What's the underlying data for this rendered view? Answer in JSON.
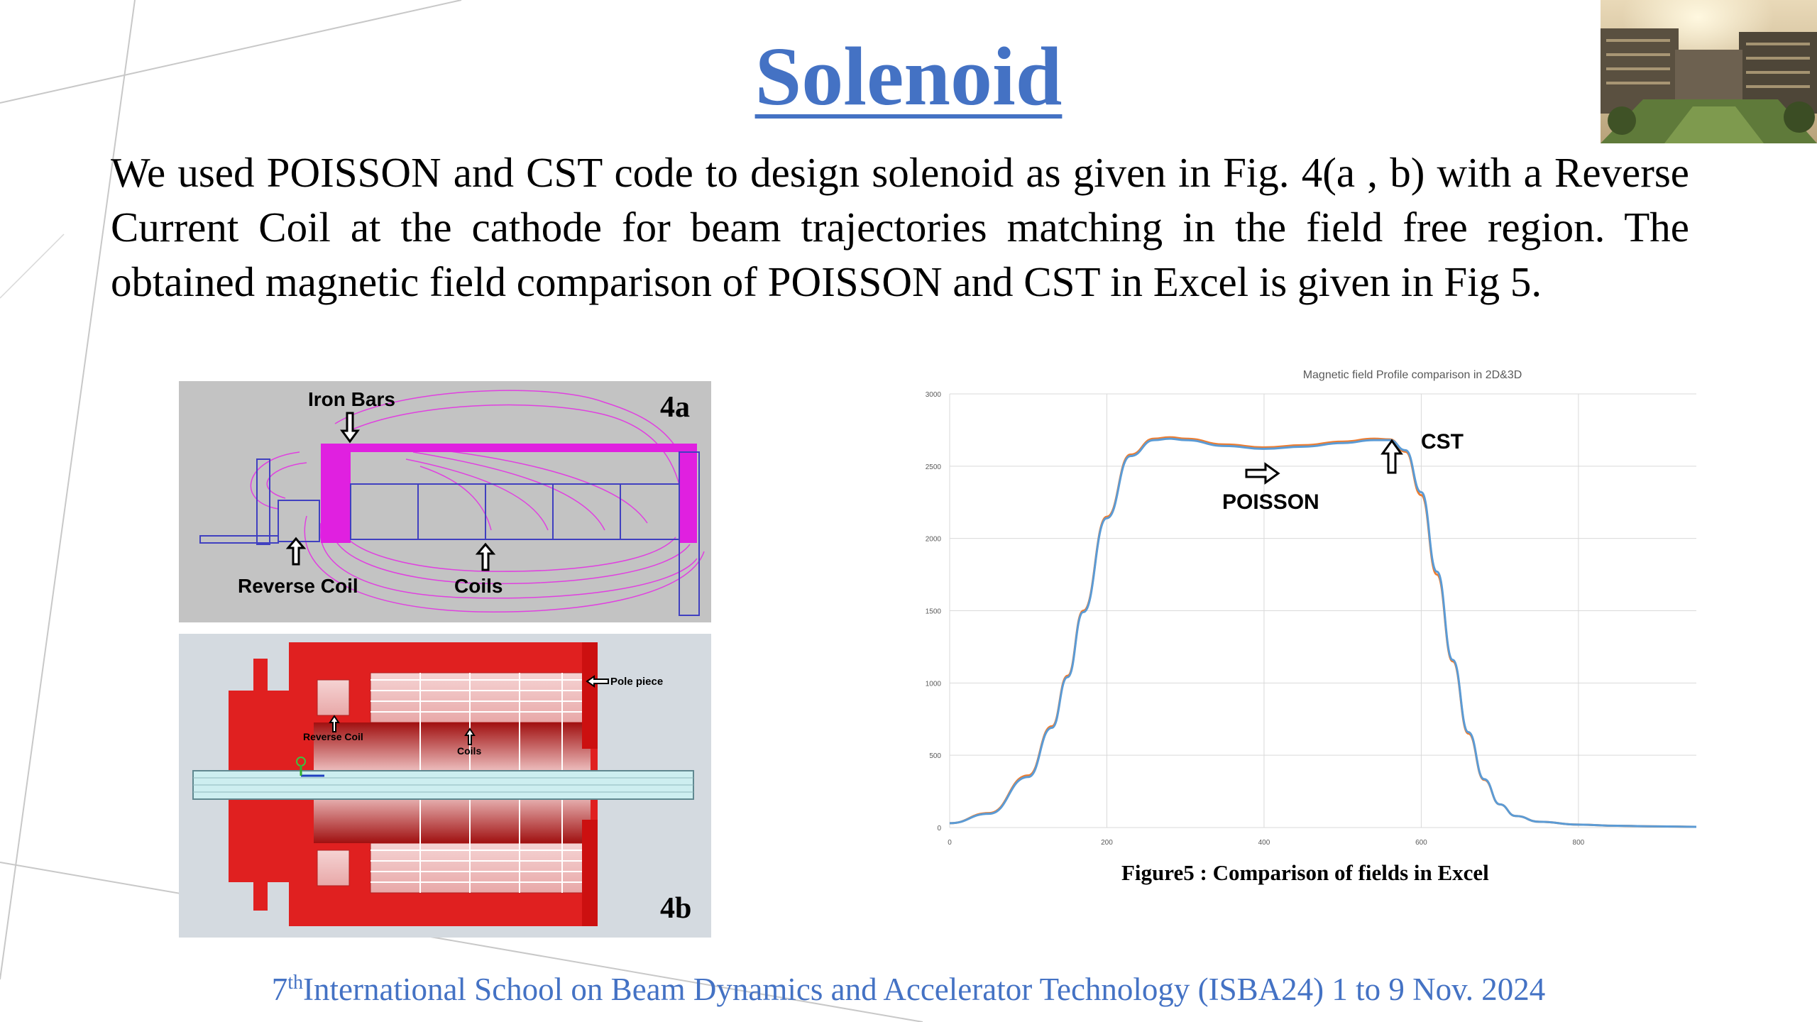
{
  "slide": {
    "title": "Solenoid",
    "body": "We used  POISSON and CST code to design solenoid as given in Fig. 4(a , b) with a Reverse Current Coil at the cathode  for beam trajectories matching in the field free region. The obtained magnetic field comparison of POISSON and CST in Excel is given in Fig 5.",
    "footer_sup": "th",
    "footer_num": "7",
    "footer_text": "International School on Beam Dynamics and Accelerator Technology (ISBA24) 1 to 9 Nov. 2024",
    "caption": "Figure5 : Comparison of fields in Excel"
  },
  "fig4a": {
    "panel_label": "4a",
    "iron_bars": "Iron Bars",
    "reverse_coil": "Reverse Coil",
    "coils": "Coils"
  },
  "fig4b": {
    "panel_label": "4b",
    "pole_piece": "Pole piece",
    "reverse_coil": "Reverse Coil",
    "coils": "Coils"
  },
  "chart_data": {
    "type": "line",
    "title": "Magnetic field Profile comparison in 2D&3D",
    "x_ticks": [
      "0",
      "200",
      "400",
      "600",
      "800"
    ],
    "y_ticks": [
      "0",
      "500",
      "1000",
      "1500",
      "2000",
      "2500",
      "3000"
    ],
    "xlim": [
      0,
      950
    ],
    "ylim": [
      0,
      3000
    ],
    "grid": true,
    "annotations": [
      "CST",
      "POISSON"
    ],
    "series": [
      {
        "name": "POISSON",
        "color": "#ed7d31",
        "x": [
          0,
          50,
          100,
          130,
          150,
          170,
          200,
          230,
          260,
          280,
          300,
          350,
          400,
          450,
          500,
          540,
          560,
          580,
          600,
          620,
          640,
          660,
          680,
          700,
          720,
          750,
          800,
          850,
          900,
          950
        ],
        "y": [
          30,
          100,
          360,
          700,
          1050,
          1500,
          2150,
          2580,
          2690,
          2700,
          2690,
          2650,
          2630,
          2645,
          2670,
          2690,
          2685,
          2600,
          2300,
          1750,
          1150,
          650,
          330,
          160,
          80,
          40,
          20,
          12,
          8,
          5
        ]
      },
      {
        "name": "CST",
        "color": "#5b9bd5",
        "x": [
          0,
          50,
          100,
          130,
          150,
          170,
          200,
          230,
          260,
          280,
          300,
          350,
          400,
          450,
          500,
          540,
          560,
          580,
          600,
          620,
          640,
          660,
          680,
          700,
          720,
          750,
          800,
          850,
          900,
          950
        ],
        "y": [
          30,
          95,
          350,
          690,
          1040,
          1490,
          2140,
          2570,
          2680,
          2690,
          2680,
          2640,
          2620,
          2635,
          2660,
          2680,
          2680,
          2610,
          2320,
          1770,
          1160,
          660,
          335,
          160,
          80,
          40,
          20,
          12,
          8,
          5
        ]
      }
    ]
  }
}
